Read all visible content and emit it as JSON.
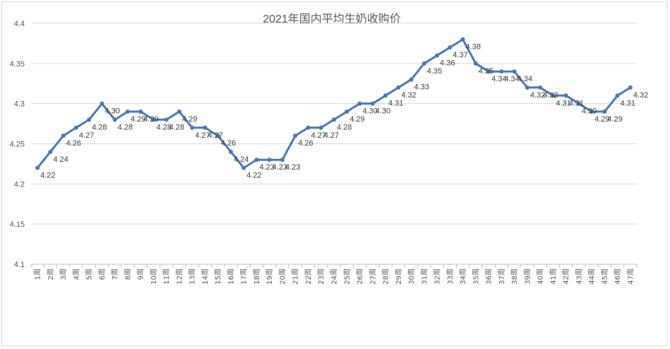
{
  "chart_data": {
    "type": "line",
    "title": "2021年国内平均生奶收购价",
    "xlabel": "",
    "ylabel": "",
    "ylim": [
      4.1,
      4.4
    ],
    "yticks": [
      "4.1",
      "4.15",
      "4.2",
      "4.25",
      "4.3",
      "4.35",
      "4.4"
    ],
    "grid": true,
    "legend": "none",
    "line_color": "#4a7ab5",
    "categories": [
      "1周",
      "2周",
      "3周",
      "4周",
      "5周",
      "6周",
      "7周",
      "8周",
      "9周",
      "10周",
      "11周",
      "12周",
      "13周",
      "14周",
      "15周",
      "16周",
      "17周",
      "18周",
      "19周",
      "20周",
      "21周",
      "22周",
      "23周",
      "24周",
      "25周",
      "26周",
      "27周",
      "28周",
      "29周",
      "30周",
      "31周",
      "32周",
      "33周",
      "34周",
      "35周",
      "36周",
      "37周",
      "38周",
      "39周",
      "40周",
      "41周",
      "42周",
      "43周",
      "44周",
      "45周",
      "46周",
      "47周"
    ],
    "values": [
      4.22,
      4.24,
      4.26,
      4.27,
      4.28,
      4.3,
      4.28,
      4.29,
      4.29,
      4.28,
      4.28,
      4.29,
      4.27,
      4.27,
      4.26,
      4.24,
      4.22,
      4.23,
      4.23,
      4.23,
      4.26,
      4.27,
      4.27,
      4.28,
      4.29,
      4.3,
      4.3,
      4.31,
      4.32,
      4.33,
      4.35,
      4.36,
      4.37,
      4.38,
      4.35,
      4.34,
      4.34,
      4.34,
      4.32,
      4.32,
      4.31,
      4.31,
      4.3,
      4.29,
      4.29,
      4.31,
      4.32
    ],
    "data_labels": [
      "4.22",
      "4.24",
      "4.26",
      "4.27",
      "4.28",
      "4.30",
      "4.28",
      "4.29",
      "4.29",
      "4.28",
      "4.28",
      "4.29",
      "4.27",
      "4.27",
      "4.26",
      "4.24",
      "4.22",
      "4.23",
      "4.23",
      "4.23",
      "4.26",
      "4.27",
      "4.27",
      "4.28",
      "4.29",
      "4.30",
      "4.30",
      "4.31",
      "4.32",
      "4.33",
      "4.35",
      "4.36",
      "4.37",
      "4.38",
      "4.35",
      "4.34",
      "4.34",
      "4.34",
      "4.32",
      "4.32",
      "4.31",
      "4.31",
      "4.30",
      "4.29",
      "4.29",
      "4.31",
      "4.32"
    ]
  }
}
